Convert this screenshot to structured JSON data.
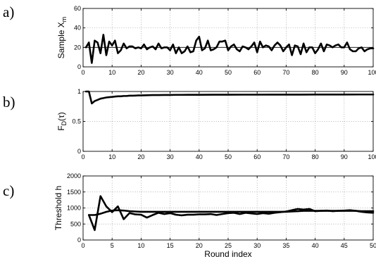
{
  "chart_data": [
    {
      "type": "line",
      "panel_label": "a)",
      "ylabel": "Sample X",
      "ylabel_sub": "m",
      "xlabel": "",
      "xlim": [
        0,
        100
      ],
      "ylim": [
        0,
        60
      ],
      "xticks": [
        0,
        10,
        20,
        30,
        40,
        50,
        60,
        70,
        80,
        90,
        100
      ],
      "yticks": [
        0,
        20,
        40,
        60
      ],
      "grid": true,
      "reference_line": 20,
      "series": [
        {
          "x": [
            1,
            2,
            3,
            4,
            5,
            6,
            7,
            8,
            9,
            10,
            11,
            12,
            13,
            14,
            15,
            16,
            17,
            18,
            19,
            20,
            21,
            22,
            23,
            24,
            25,
            26,
            27,
            28,
            29,
            30,
            31,
            32,
            33,
            34,
            35,
            36,
            37,
            38,
            39,
            40,
            41,
            42,
            43,
            44,
            45,
            46,
            47,
            48,
            49,
            50,
            51,
            52,
            53,
            54,
            55,
            56,
            57,
            58,
            59,
            60,
            61,
            62,
            63,
            64,
            65,
            66,
            67,
            68,
            69,
            70,
            71,
            72,
            73,
            74,
            75,
            76,
            77,
            78,
            79,
            80,
            81,
            82,
            83,
            84,
            85,
            86,
            87,
            88,
            89,
            90,
            91,
            92,
            93,
            94,
            95,
            96,
            97,
            98,
            99,
            100
          ],
          "values": [
            20,
            25,
            4,
            27,
            25,
            14,
            33,
            12,
            26,
            22,
            27,
            14,
            17,
            24,
            19,
            21,
            21,
            19,
            20,
            19,
            23,
            18,
            20,
            21,
            18,
            24,
            19,
            20,
            20,
            17,
            23,
            14,
            20,
            14,
            16,
            21,
            15,
            16,
            27,
            31,
            17,
            19,
            27,
            17,
            18,
            20,
            26,
            26,
            27,
            17,
            21,
            23,
            18,
            16,
            21,
            20,
            18,
            21,
            25,
            15,
            26,
            20,
            22,
            21,
            17,
            22,
            25,
            22,
            16,
            20,
            23,
            12,
            22,
            21,
            13,
            24,
            15,
            20,
            20,
            14,
            18,
            24,
            16,
            23,
            22,
            20,
            22,
            23,
            20,
            20,
            25,
            18,
            16,
            16,
            19,
            20,
            16,
            18,
            19,
            19
          ]
        }
      ]
    },
    {
      "type": "line",
      "panel_label": "b)",
      "ylabel": "F",
      "ylabel_sub": "D",
      "ylabel_suffix": "(τ)",
      "xlabel": "",
      "xlim": [
        0,
        100
      ],
      "ylim": [
        0,
        1
      ],
      "xticks": [
        0,
        10,
        20,
        30,
        40,
        50,
        60,
        70,
        80,
        90,
        100
      ],
      "yticks": [
        0,
        0.5,
        1
      ],
      "grid": true,
      "series": [
        {
          "x": [
            1,
            2,
            3,
            4,
            5,
            6,
            7,
            8,
            9,
            10,
            11,
            12,
            13,
            14,
            15,
            16,
            17,
            18,
            19,
            20,
            22,
            24,
            26,
            28,
            30,
            32,
            34,
            36,
            40,
            45,
            50,
            55,
            60,
            65,
            70,
            75,
            80,
            85,
            90,
            95,
            100
          ],
          "values": [
            1.0,
            1.0,
            0.8,
            0.84,
            0.86,
            0.88,
            0.89,
            0.9,
            0.905,
            0.91,
            0.915,
            0.92,
            0.92,
            0.925,
            0.925,
            0.93,
            0.93,
            0.932,
            0.935,
            0.935,
            0.938,
            0.94,
            0.94,
            0.942,
            0.942,
            0.944,
            0.944,
            0.945,
            0.945,
            0.946,
            0.946,
            0.947,
            0.947,
            0.948,
            0.948,
            0.948,
            0.949,
            0.949,
            0.949,
            0.95,
            0.95
          ]
        }
      ]
    },
    {
      "type": "line",
      "panel_label": "c)",
      "ylabel": "Threshold h",
      "xlabel": "Round index",
      "xlim": [
        0,
        50
      ],
      "ylim": [
        0,
        2000
      ],
      "xticks": [
        0,
        5,
        10,
        15,
        20,
        25,
        30,
        35,
        40,
        45,
        50
      ],
      "yticks": [
        0,
        500,
        1000,
        1500,
        2000
      ],
      "grid": true,
      "series": [
        {
          "x": [
            1,
            2,
            3,
            4,
            5,
            6,
            7,
            8,
            9,
            10,
            11,
            12,
            13,
            14,
            15,
            16,
            17,
            18,
            19,
            20,
            21,
            22,
            23,
            24,
            25,
            26,
            27,
            28,
            29,
            30,
            31,
            32,
            33,
            34,
            35,
            36,
            37,
            38,
            39,
            40,
            41,
            42,
            43,
            44,
            45,
            46,
            47,
            48,
            49,
            50
          ],
          "values": [
            780,
            310,
            1370,
            1050,
            870,
            1050,
            650,
            840,
            800,
            790,
            700,
            780,
            850,
            810,
            840,
            790,
            770,
            790,
            790,
            800,
            800,
            810,
            780,
            810,
            840,
            850,
            810,
            850,
            830,
            810,
            840,
            820,
            850,
            870,
            890,
            930,
            970,
            950,
            970,
            900,
            910,
            920,
            900,
            910,
            920,
            930,
            910,
            880,
            860,
            850
          ]
        },
        {
          "x": [
            1,
            2,
            3,
            4,
            5,
            6,
            7,
            8,
            9,
            10,
            11,
            12,
            13,
            14,
            15,
            16,
            17,
            18,
            19,
            20,
            21,
            22,
            23,
            24,
            25,
            26,
            27,
            28,
            29,
            30,
            31,
            32,
            33,
            34,
            35,
            36,
            37,
            38,
            39,
            40,
            41,
            42,
            43,
            44,
            45,
            46,
            47,
            48,
            49,
            50
          ],
          "values": [
            780,
            780,
            820,
            880,
            920,
            930,
            920,
            900,
            890,
            880,
            880,
            880,
            880,
            880,
            880,
            880,
            880,
            880,
            880,
            880,
            880,
            880,
            880,
            880,
            880,
            880,
            880,
            880,
            880,
            880,
            880,
            880,
            880,
            880,
            880,
            890,
            900,
            910,
            910,
            910,
            910,
            910,
            910,
            910,
            910,
            910,
            910,
            900,
            900,
            900
          ]
        }
      ]
    }
  ]
}
